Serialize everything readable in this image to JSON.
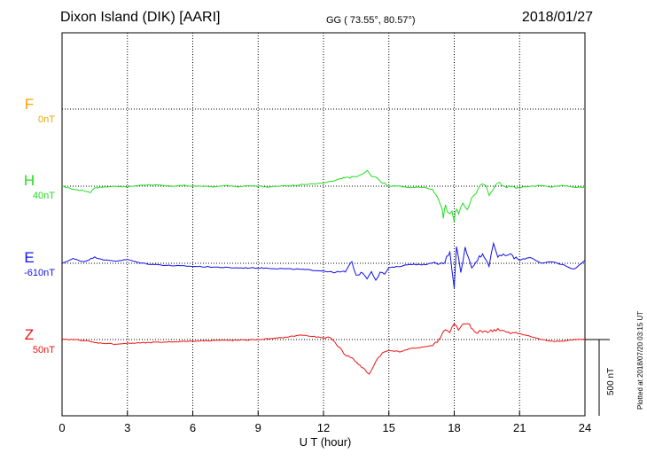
{
  "header": {
    "station": "Dixon Island (DIK)  [AARI]",
    "coords": "GG ( 73.55°,  80.57°)",
    "date": "2018/01/27"
  },
  "components": [
    {
      "key": "F",
      "label": "F",
      "offset": "0nT",
      "color": "#f5a400"
    },
    {
      "key": "H",
      "label": "H",
      "offset": "40nT",
      "color": "#22dd22"
    },
    {
      "key": "E",
      "label": "E",
      "offset": "-610nT",
      "color": "#1010ee"
    },
    {
      "key": "Z",
      "label": "Z",
      "offset": "50nT",
      "color": "#ee1111"
    }
  ],
  "scale_label": "500 nT",
  "plotted_note": "Plotted at 2018/07/20 03:15 UT",
  "chart_data": {
    "type": "line",
    "xlabel": "U T (hour)",
    "x_ticks": [
      "0",
      "3",
      "6",
      "9",
      "12",
      "15",
      "18",
      "21",
      "24"
    ],
    "xlim": [
      0,
      24
    ],
    "grid": true,
    "scale_bar_nT": 500,
    "series": [
      {
        "name": "H",
        "color": "#22dd22",
        "x": [
          0,
          0.5,
          1,
          1.3,
          1.5,
          2,
          2.5,
          3,
          3.5,
          4,
          4.5,
          5,
          5.5,
          6,
          6.5,
          7,
          7.5,
          8,
          8.5,
          9,
          9.5,
          10,
          10.5,
          11,
          11.5,
          12,
          12.5,
          13,
          13.3,
          13.6,
          13.8,
          14,
          14.2,
          14.4,
          14.6,
          14.8,
          15,
          15.5,
          16,
          16.5,
          17,
          17.2,
          17.4,
          17.5,
          17.6,
          17.7,
          17.9,
          18,
          18.1,
          18.2,
          18.4,
          18.6,
          18.8,
          19,
          19.2,
          19.4,
          19.5,
          19.6,
          19.8,
          20,
          20.5,
          21,
          21.5,
          22,
          22.5,
          23,
          23.5,
          24
        ],
        "y": [
          0,
          -20,
          -30,
          -40,
          -10,
          -5,
          0,
          -5,
          5,
          10,
          5,
          0,
          5,
          0,
          0,
          -5,
          5,
          -5,
          5,
          0,
          -5,
          0,
          5,
          10,
          15,
          20,
          35,
          55,
          60,
          65,
          80,
          100,
          70,
          60,
          30,
          20,
          0,
          0,
          -10,
          -5,
          -20,
          -60,
          -130,
          -200,
          -120,
          -180,
          -160,
          -230,
          -140,
          -190,
          -110,
          -150,
          -80,
          -40,
          0,
          10,
          -20,
          -50,
          -10,
          20,
          -5,
          -10,
          0,
          5,
          -5,
          5,
          -5,
          -10
        ]
      },
      {
        "name": "E",
        "color": "#1010ee",
        "x": [
          0,
          0.5,
          1,
          1.5,
          2,
          2.5,
          3,
          3.5,
          4,
          4.5,
          5,
          6,
          7,
          8,
          9,
          10,
          11,
          11.5,
          12,
          12.5,
          13,
          13.3,
          13.5,
          13.8,
          14,
          14.2,
          14.4,
          14.6,
          14.8,
          15,
          15.5,
          16,
          16.5,
          17,
          17.5,
          17.8,
          18,
          18.1,
          18.3,
          18.5,
          18.8,
          19,
          19.3,
          19.6,
          19.8,
          20,
          20.5,
          21,
          21.5,
          22,
          22.5,
          23,
          23.5,
          24
        ],
        "y": [
          0,
          30,
          10,
          40,
          20,
          15,
          25,
          5,
          -5,
          -10,
          -15,
          -20,
          -25,
          -30,
          -30,
          -35,
          -40,
          -45,
          -50,
          -60,
          -55,
          10,
          -80,
          -60,
          -100,
          -50,
          -110,
          -60,
          -70,
          -30,
          -20,
          -5,
          -10,
          0,
          -5,
          80,
          -160,
          120,
          -60,
          100,
          -30,
          20,
          60,
          -10,
          140,
          40,
          60,
          20,
          40,
          0,
          10,
          -10,
          -40,
          20
        ]
      },
      {
        "name": "Z",
        "color": "#ee1111",
        "x": [
          0,
          0.5,
          1,
          1.5,
          2,
          2.5,
          3,
          4,
          5,
          6,
          7,
          8,
          9,
          10,
          10.5,
          11,
          11.5,
          12,
          12.3,
          12.6,
          13,
          13.3,
          13.6,
          13.9,
          14.1,
          14.3,
          14.5,
          14.7,
          15,
          15.5,
          16,
          16.5,
          17,
          17.3,
          17.6,
          17.8,
          18,
          18.2,
          18.5,
          18.7,
          19,
          19.3,
          19.6,
          20,
          20.5,
          21,
          21.5,
          22,
          22.5,
          23,
          23.5,
          24
        ],
        "y": [
          0,
          0,
          -5,
          -20,
          -25,
          -30,
          -25,
          -20,
          -15,
          -10,
          -5,
          -5,
          0,
          10,
          20,
          30,
          20,
          10,
          15,
          -30,
          -100,
          -120,
          -160,
          -200,
          -230,
          -170,
          -120,
          -90,
          -70,
          -80,
          -60,
          -50,
          -40,
          0,
          70,
          50,
          100,
          60,
          110,
          90,
          40,
          60,
          50,
          70,
          40,
          40,
          20,
          0,
          -10,
          -10,
          0,
          0
        ]
      }
    ]
  }
}
